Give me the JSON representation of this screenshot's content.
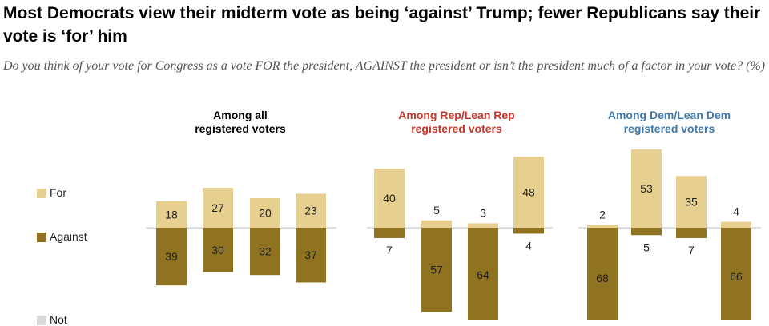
{
  "title": "Most Democrats view their midterm vote as being ‘against’ Trump; fewer Republicans say their vote is ‘for’ him",
  "subtitle": "Do you think of your vote for Congress as a vote FOR the president, AGAINST the president or isn’t the president much of a factor in your vote? (%)",
  "colors": {
    "for": "#e6cf8f",
    "against": "#8f7321",
    "rep": "#c8352b",
    "dem": "#3f78a8",
    "all": "#000000"
  },
  "legend": {
    "for": "For",
    "against": "Against",
    "cut_off": "Not"
  },
  "chart_data": [
    {
      "type": "bar",
      "title": "Among all registered voters",
      "title_lines": [
        "Among all",
        "registered voters"
      ],
      "title_color": "#000000",
      "series": [
        {
          "name": "For",
          "values": [
            18,
            27,
            20,
            23
          ]
        },
        {
          "name": "Against",
          "values": [
            39,
            30,
            32,
            37
          ]
        }
      ]
    },
    {
      "type": "bar",
      "title": "Among Rep/Lean Rep registered voters",
      "title_lines": [
        "Among Rep/Lean Rep",
        "registered voters"
      ],
      "title_color": "#c8352b",
      "series": [
        {
          "name": "For",
          "values": [
            40,
            5,
            3,
            48
          ]
        },
        {
          "name": "Against",
          "values": [
            7,
            57,
            64,
            4
          ]
        }
      ]
    },
    {
      "type": "bar",
      "title": "Among Dem/Lean Dem registered voters",
      "title_lines": [
        "Among Dem/Lean Dem",
        "registered voters"
      ],
      "title_color": "#3f78a8",
      "series": [
        {
          "name": "For",
          "values": [
            2,
            53,
            35,
            4
          ]
        },
        {
          "name": "Against",
          "values": [
            68,
            5,
            7,
            66
          ]
        }
      ]
    }
  ]
}
